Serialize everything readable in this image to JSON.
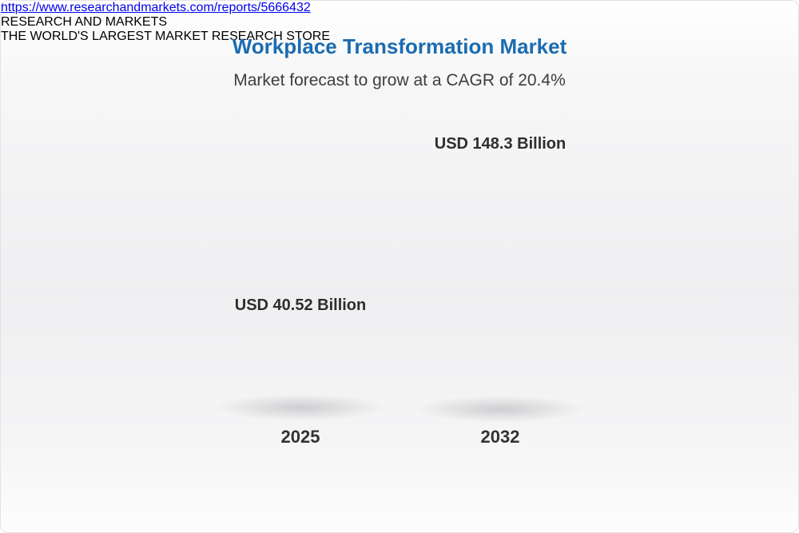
{
  "header": {
    "title": "Workplace Transformation Market",
    "subtitle": "Market forecast to grow at a CAGR of 20.4%"
  },
  "chart_data": {
    "type": "bar",
    "variant": "3d-cylinder",
    "title": "Workplace Transformation Market",
    "subtitle": "Market forecast to grow at a CAGR of 20.4%",
    "categories": [
      "2025",
      "2032"
    ],
    "values": [
      40.52,
      148.3
    ],
    "value_labels": [
      "USD 40.52 Billion",
      "USD 148.3 Billion"
    ],
    "unit": "USD Billion",
    "cagr_percent": 20.4,
    "legend_position": "none",
    "grid": false,
    "colors": {
      "bar_2025": "#f4cd6e",
      "bar_2032": "#477cab",
      "bar_2032_base_overlay": "#f4cd6e",
      "title": "#1b6cb0",
      "label_text": "#2e2e2e"
    }
  },
  "footer": {
    "url": "https://www.researchandmarkets.com/reports/5666432",
    "logo": {
      "word1": "RESEARCH",
      "word2": "AND",
      "word3": "MARKETS",
      "tagline": "THE WORLD'S LARGEST MARKET RESEARCH STORE",
      "blue": "#1565a7",
      "gold": "#f0af2e"
    }
  }
}
